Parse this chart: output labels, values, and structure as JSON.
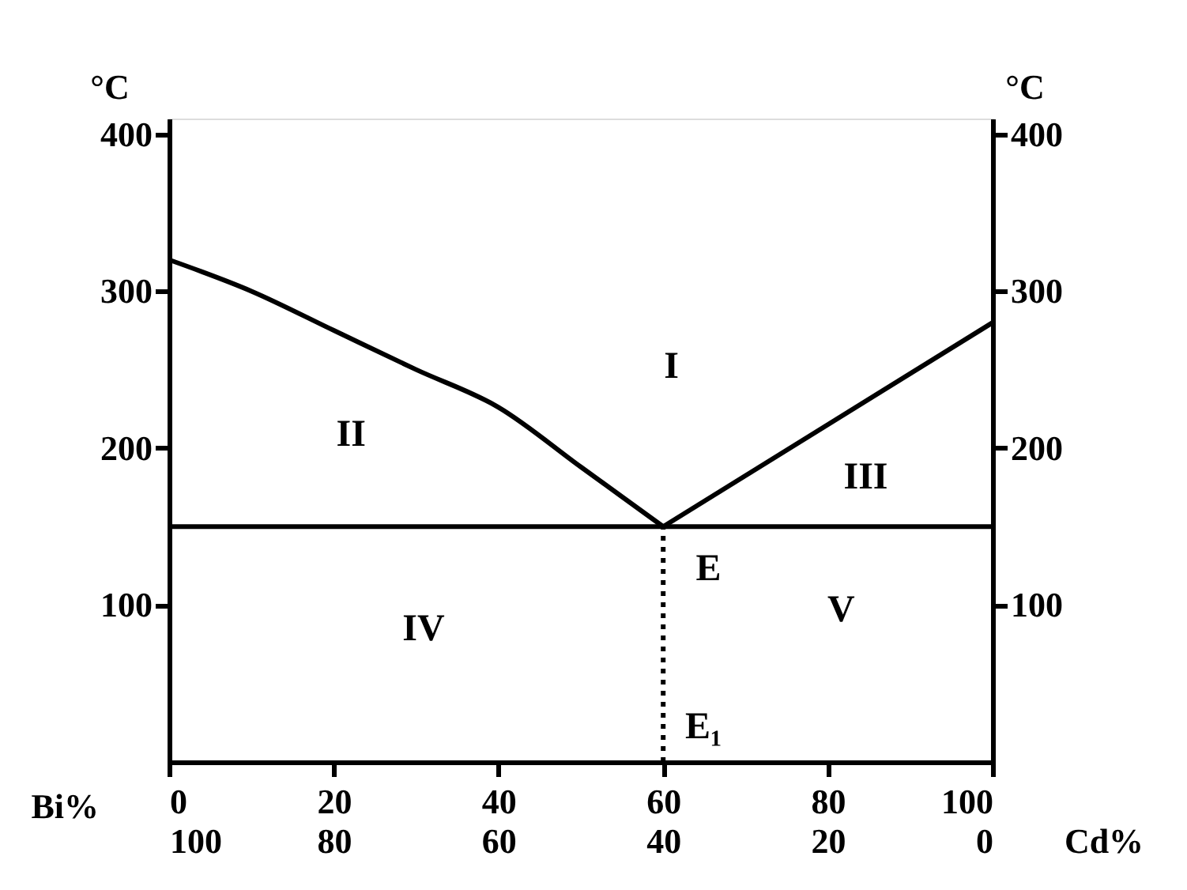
{
  "chart_data": {
    "type": "line",
    "xlabel": "Bi%",
    "x2label": "Cd%",
    "ylabel": "°C",
    "y2label": "°C",
    "xlim": [
      0,
      100
    ],
    "xticks": [
      0,
      20,
      40,
      60,
      80,
      100
    ],
    "x2lim": [
      100,
      0
    ],
    "x2ticks": [
      100,
      80,
      60,
      40,
      20,
      0
    ],
    "ylim": [
      0,
      410
    ],
    "yticks": [
      100,
      200,
      300,
      400
    ],
    "y2lim": [
      0,
      410
    ],
    "y2ticks": [
      100,
      200,
      300,
      400
    ],
    "grid": false,
    "series": [
      {
        "color": "#000000",
        "x": [
          0,
          10,
          20,
          30,
          40,
          50,
          60
        ],
        "values": [
          320,
          300,
          275,
          250,
          226,
          188,
          150
        ]
      },
      {
        "color": "#000000",
        "x": [
          60,
          100
        ],
        "values": [
          150,
          280
        ]
      },
      {
        "color": "#000000",
        "x": [
          0,
          100
        ],
        "values": [
          150,
          150
        ]
      },
      {
        "color": "#000000",
        "x": [
          60,
          60
        ],
        "values": [
          0,
          150
        ],
        "line_style": "dotted"
      }
    ],
    "annotations": [
      "I",
      "II",
      "III",
      "IV",
      "V",
      "E",
      "E₁"
    ]
  }
}
